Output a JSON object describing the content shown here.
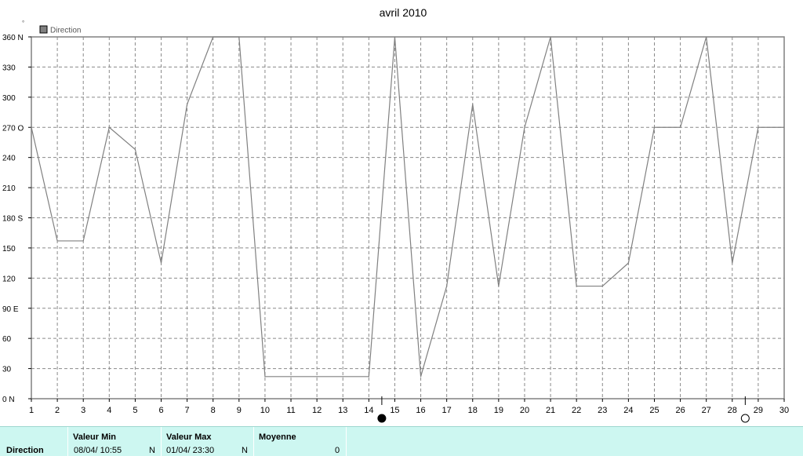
{
  "chart_data": {
    "type": "line",
    "title": "avril 2010",
    "unit": "°",
    "legend": {
      "label": "Direction",
      "placement": "top-left"
    },
    "x": [
      1,
      2,
      3,
      4,
      5,
      6,
      7,
      8,
      9,
      10,
      11,
      12,
      13,
      14,
      15,
      16,
      17,
      18,
      19,
      20,
      21,
      22,
      23,
      24,
      25,
      26,
      27,
      28,
      29,
      30
    ],
    "x_ticks": [
      "1",
      "2",
      "3",
      "4",
      "5",
      "6",
      "7",
      "8",
      "9",
      "10",
      "11",
      "12",
      "13",
      "14",
      "15",
      "16",
      "17",
      "18",
      "19",
      "20",
      "21",
      "22",
      "23",
      "24",
      "25",
      "26",
      "27",
      "28",
      "29",
      "30"
    ],
    "xlim": [
      1,
      30
    ],
    "ylim": [
      0,
      360
    ],
    "y_ticks": [
      {
        "value": 0,
        "label": "0   N"
      },
      {
        "value": 30,
        "label": "30"
      },
      {
        "value": 60,
        "label": "60"
      },
      {
        "value": 90,
        "label": "90   E"
      },
      {
        "value": 120,
        "label": "120"
      },
      {
        "value": 150,
        "label": "150"
      },
      {
        "value": 180,
        "label": "180 S"
      },
      {
        "value": 210,
        "label": "210"
      },
      {
        "value": 240,
        "label": "240"
      },
      {
        "value": 270,
        "label": "270 O"
      },
      {
        "value": 300,
        "label": "300"
      },
      {
        "value": 330,
        "label": "330"
      },
      {
        "value": 360,
        "label": "360 N"
      }
    ],
    "grid": true,
    "series": [
      {
        "name": "Direction",
        "color": "#808080",
        "points": [
          [
            1,
            270
          ],
          [
            2,
            157
          ],
          [
            3,
            157
          ],
          [
            4,
            270
          ],
          [
            5,
            248
          ],
          [
            6,
            135
          ],
          [
            7,
            293
          ],
          [
            8,
            360
          ],
          [
            9,
            360
          ],
          [
            10,
            22
          ],
          [
            11,
            22
          ],
          [
            12,
            22
          ],
          [
            13,
            22
          ],
          [
            14,
            22
          ],
          [
            15,
            360
          ],
          [
            16,
            22
          ],
          [
            17,
            112
          ],
          [
            18,
            293
          ],
          [
            19,
            112
          ],
          [
            20,
            270
          ],
          [
            21,
            360
          ],
          [
            22,
            112
          ],
          [
            23,
            112
          ],
          [
            24,
            135
          ],
          [
            25,
            270
          ],
          [
            26,
            270
          ],
          [
            27,
            360
          ],
          [
            28,
            135
          ],
          [
            29,
            270
          ],
          [
            30,
            270
          ]
        ]
      }
    ],
    "moon_phases": [
      {
        "phase": "new",
        "x": 14.5
      },
      {
        "phase": "full",
        "x": 28.5
      }
    ]
  },
  "footer": {
    "row_label": "Direction",
    "columns": [
      {
        "header": "Valeur Min",
        "date": "08/04/  10:55",
        "value": "N"
      },
      {
        "header": "Valeur Max",
        "date": "01/04/  23:30",
        "value": "N"
      },
      {
        "header": "Moyenne",
        "date": "",
        "value": "0"
      }
    ]
  }
}
